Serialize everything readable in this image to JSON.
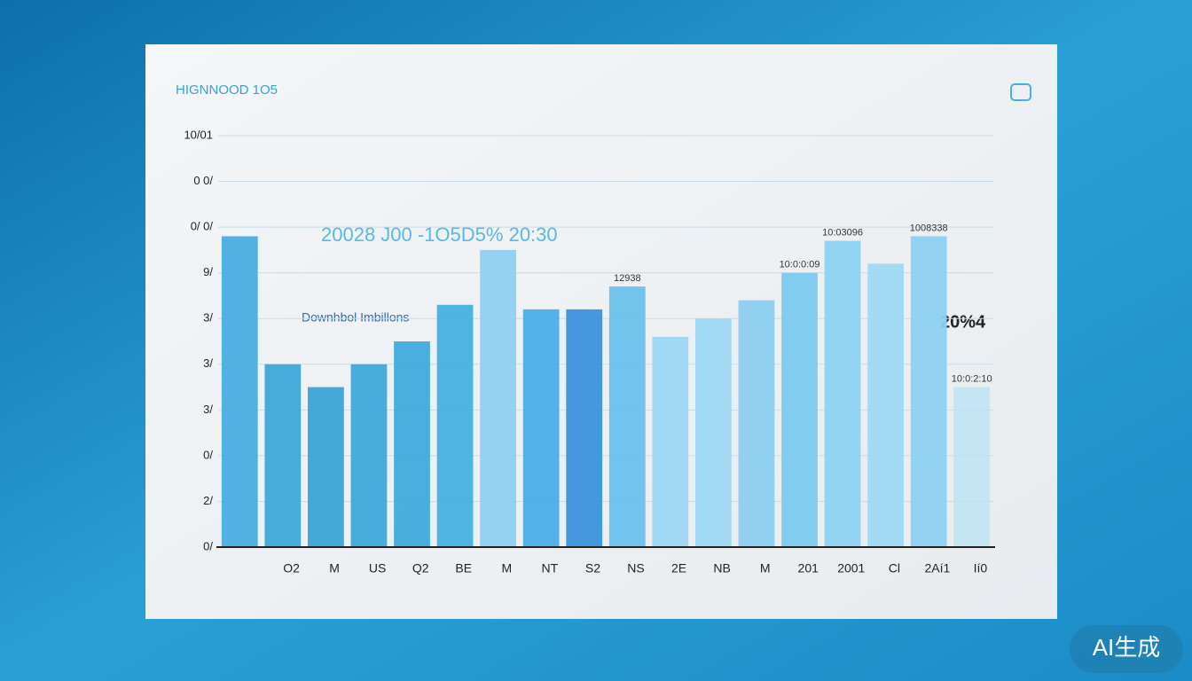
{
  "chart_data": {
    "type": "bar",
    "title": "HIGNNOOD  1O5",
    "annotations": [
      "20028 J00  -1O5D5%  20:30",
      "Downhbol Imbillons",
      "20%4"
    ],
    "watermark": "AI生成",
    "categories": [
      null,
      "O2",
      "M",
      "US",
      "Q2",
      "BE",
      "M",
      "NT",
      "S2",
      "NS",
      "2E",
      "NB",
      "M",
      "201",
      "2001",
      "Cl",
      "2Aí1",
      "Ií0"
    ],
    "values": [
      6.8,
      4.0,
      3.5,
      4.0,
      4.5,
      5.3,
      6.5,
      5.2,
      5.2,
      5.7,
      4.6,
      5.0,
      5.4,
      6.0,
      6.7,
      6.2,
      6.8,
      3.5
    ],
    "bar_labels": [
      null,
      null,
      null,
      null,
      null,
      null,
      null,
      null,
      null,
      "12938",
      null,
      null,
      null,
      "10:0:0:09",
      "10:03096",
      null,
      "1008338",
      "10:0:2:10"
    ],
    "colors": [
      "#49ade0",
      "#3ea8d8",
      "#3aa4d6",
      "#3ea8da",
      "#40aadc",
      "#47b0e0",
      "#8fd0f0",
      "#4aaee6",
      "#3b92dc",
      "#6cc0ec",
      "#9ed6f2",
      "#a0d8f2",
      "#8ccdf0",
      "#7ccaee",
      "#8fd2f2",
      "#a0d8f2",
      "#8ed0f2",
      "#b8e2f4"
    ],
    "ylim": [
      0,
      9
    ],
    "yticks": [
      {
        "value": 0,
        "label": "0/"
      },
      {
        "value": 1,
        "label": "2/"
      },
      {
        "value": 2,
        "label": "0/"
      },
      {
        "value": 3,
        "label": "3/"
      },
      {
        "value": 4,
        "label": "3/"
      },
      {
        "value": 5,
        "label": "3/"
      },
      {
        "value": 6,
        "label": "9/"
      },
      {
        "value": 7,
        "label": "0/  0/"
      },
      {
        "value": 8,
        "label": "0  0/"
      },
      {
        "value": 9,
        "label": "10/01"
      }
    ],
    "grid": true
  }
}
